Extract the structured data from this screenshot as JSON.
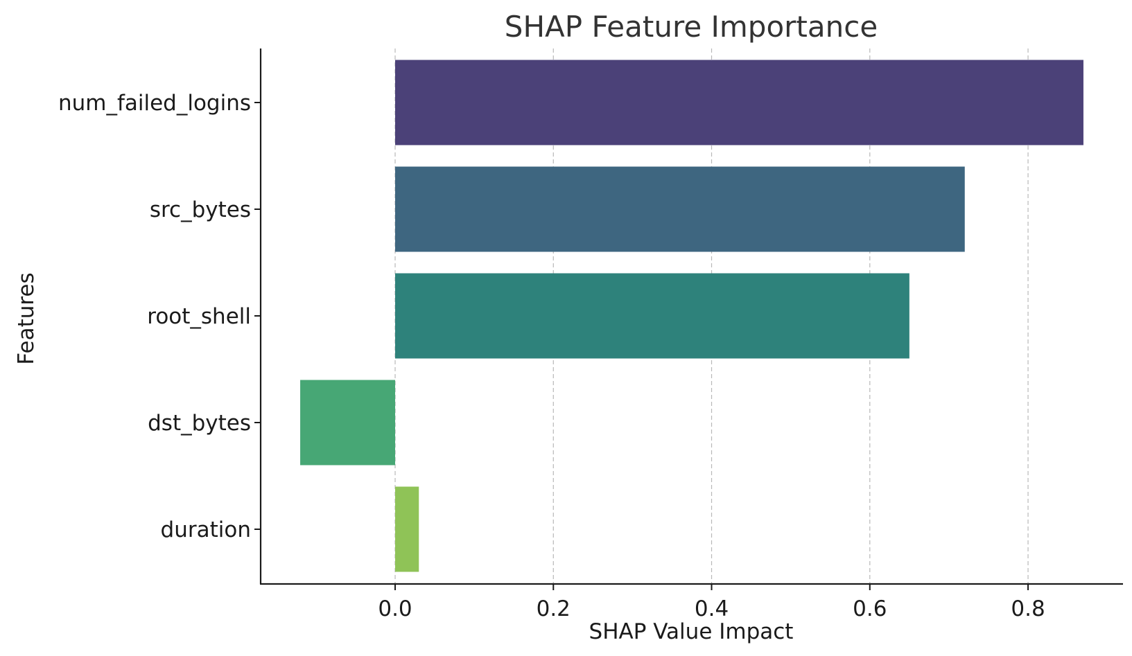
{
  "chart_data": {
    "type": "bar",
    "orientation": "horizontal",
    "title": "SHAP Feature Importance",
    "xlabel": "SHAP Value Impact",
    "ylabel": "Features",
    "categories": [
      "num_failed_logins",
      "src_bytes",
      "root_shell",
      "dst_bytes",
      "duration"
    ],
    "values": [
      0.87,
      0.72,
      0.65,
      -0.12,
      0.03
    ],
    "colors": [
      "#4b4178",
      "#3e6680",
      "#2e827b",
      "#47a775",
      "#8fc357"
    ],
    "xlim": [
      -0.17,
      0.92
    ],
    "xticks": [
      0.0,
      0.2,
      0.4,
      0.6,
      0.8
    ],
    "xtick_labels": [
      "0.0",
      "0.2",
      "0.4",
      "0.6",
      "0.8"
    ],
    "grid": "x dashed",
    "legend": "none"
  }
}
